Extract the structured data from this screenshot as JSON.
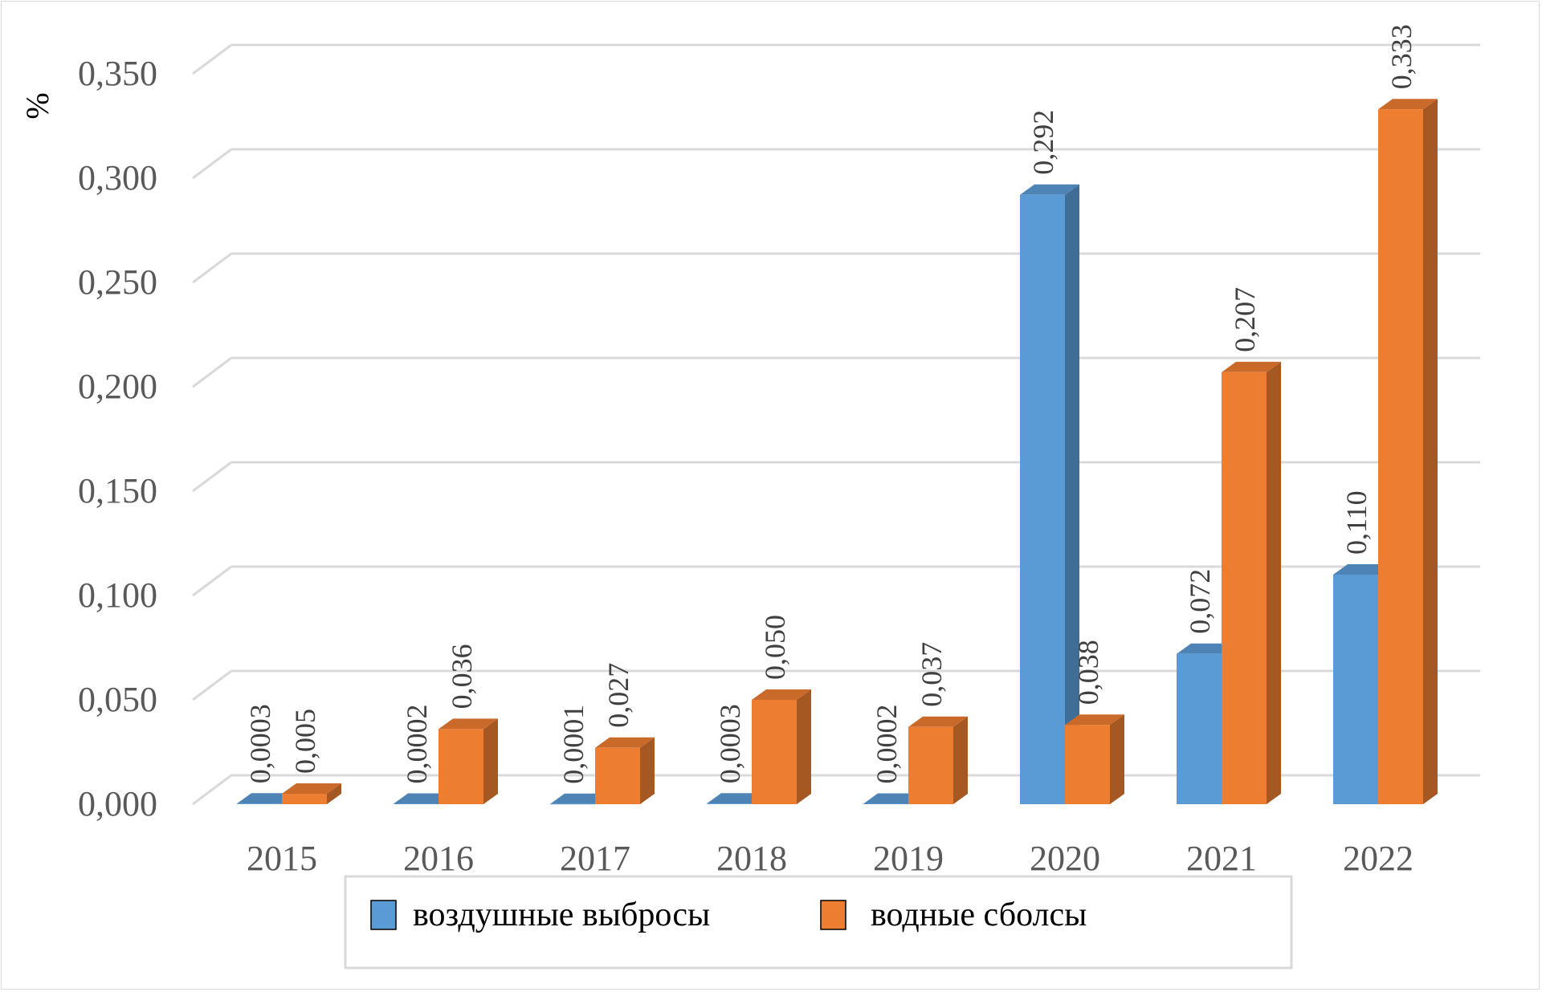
{
  "chart_data": {
    "type": "bar",
    "ylabel": "%",
    "ylim": [
      0,
      0.35
    ],
    "y_ticks": [
      "0,000",
      "0,050",
      "0,100",
      "0,150",
      "0,200",
      "0,250",
      "0,300",
      "0,350"
    ],
    "y_tick_values": [
      0,
      0.05,
      0.1,
      0.15,
      0.2,
      0.25,
      0.3,
      0.35
    ],
    "categories": [
      "2015",
      "2016",
      "2017",
      "2018",
      "2019",
      "2020",
      "2021",
      "2022"
    ],
    "series": [
      {
        "name": "воздушные выбросы",
        "color": "#5b9bd5",
        "values": [
          0.0003,
          0.0002,
          0.0001,
          0.0003,
          0.0002,
          0.292,
          0.072,
          0.11
        ],
        "labels": [
          "0,0003",
          "0,0002",
          "0,0001",
          "0,0003",
          "0,0002",
          "0,292",
          "0,072",
          "0,110"
        ]
      },
      {
        "name": "водные сболсы",
        "color": "#ed7d31",
        "values": [
          0.005,
          0.036,
          0.027,
          0.05,
          0.037,
          0.038,
          0.207,
          0.333
        ],
        "labels": [
          "0,005",
          "0,036",
          "0,027",
          "0,050",
          "0,037",
          "0,038",
          "0,207",
          "0,333"
        ]
      }
    ],
    "grid": true,
    "style": "3d-clustered-column",
    "legend_position": "bottom"
  }
}
